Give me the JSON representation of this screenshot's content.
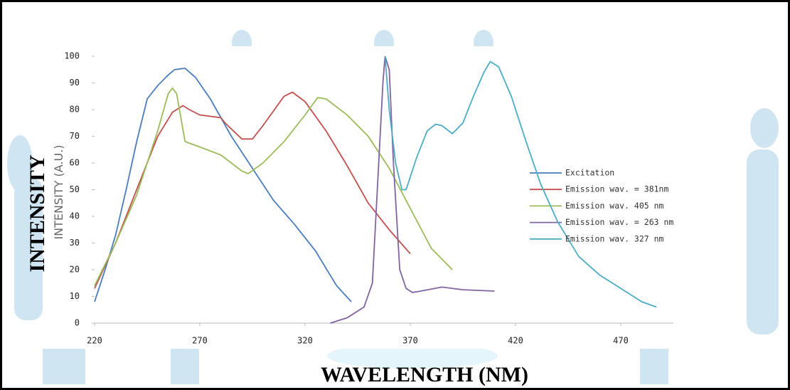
{
  "chart_data": {
    "type": "line",
    "xlabel": "WAVELENGTH (NM)",
    "ylabel": "INTENSITY",
    "ylabel_overlay": "INTENSITY (A.U.)",
    "xlim": [
      220,
      495
    ],
    "xticks": [
      220,
      270,
      320,
      370,
      420,
      470
    ],
    "ylim": [
      0,
      100
    ],
    "yticks": [
      0,
      10,
      20,
      30,
      40,
      50,
      60,
      70,
      80,
      90,
      100
    ],
    "legend": "right",
    "series": [
      {
        "name": "Excitation",
        "color": "#4a7dbe",
        "x": [
          220,
          225,
          230,
          235,
          240,
          245,
          250,
          255,
          258,
          263,
          268,
          275,
          285,
          295,
          305,
          315,
          325,
          335,
          342
        ],
        "values": [
          8,
          20,
          33,
          50,
          68,
          84,
          89,
          93,
          95,
          95.5,
          92,
          84,
          70,
          58,
          46,
          37,
          27,
          14,
          8
        ]
      },
      {
        "name": "Emission wav. = 381nm",
        "color": "#c0504d",
        "x": [
          220,
          230,
          240,
          250,
          257,
          262,
          265,
          270,
          280,
          282,
          290,
          295,
          300,
          310,
          314,
          320,
          330,
          340,
          350,
          360,
          370
        ],
        "values": [
          13,
          30,
          50,
          70,
          79,
          81.5,
          80,
          78,
          77,
          75,
          69,
          69,
          74,
          85,
          86.5,
          83,
          72,
          59,
          45,
          35,
          26
        ]
      },
      {
        "name": "Emission wav. 405 nm",
        "color": "#9bbb59",
        "x": [
          220,
          230,
          240,
          250,
          255,
          257,
          259,
          263,
          270,
          280,
          290,
          293,
          300,
          310,
          320,
          326,
          330,
          340,
          350,
          360,
          370,
          380,
          390
        ],
        "values": [
          14,
          30,
          48,
          72,
          86,
          88,
          86,
          68,
          66,
          63,
          57,
          56,
          60,
          68,
          78,
          84.5,
          84,
          78,
          70,
          58,
          43,
          28,
          20
        ]
      },
      {
        "name": "Emission wav. = 263 nm",
        "color": "#8064a2",
        "x": [
          332,
          340,
          348,
          352,
          355,
          357,
          358,
          360,
          362,
          365,
          368,
          371,
          375,
          385,
          395,
          410
        ],
        "values": [
          0,
          2,
          6,
          15,
          60,
          90,
          100,
          95,
          60,
          20,
          13,
          11.5,
          12,
          13.5,
          12.5,
          12
        ]
      },
      {
        "name": "Emission wav. 327 nm",
        "color": "#4bacc6",
        "x": [
          358,
          360,
          363,
          366,
          368,
          373,
          378,
          382,
          385,
          390,
          395,
          400,
          405,
          408,
          412,
          418,
          425,
          432,
          440,
          450,
          460,
          470,
          480,
          487
        ],
        "values": [
          100,
          80,
          60,
          50,
          50,
          62,
          72,
          74.5,
          74,
          71,
          75,
          85,
          94,
          98,
          96,
          85,
          68,
          52,
          38,
          25,
          18,
          13,
          8,
          6
        ]
      }
    ]
  }
}
